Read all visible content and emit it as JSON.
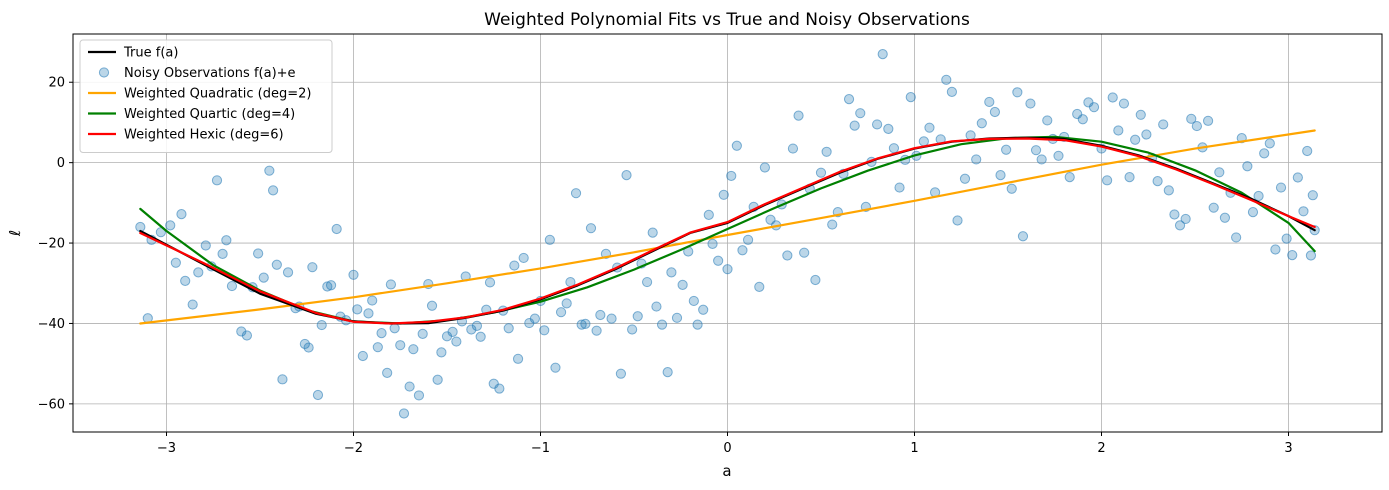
{
  "chart_data": {
    "type": "line",
    "title": "Weighted Polynomial Fits vs True and Noisy Observations",
    "xlabel": "a",
    "ylabel": "ℓ",
    "xlim": [
      -3.5,
      3.5
    ],
    "ylim": [
      -67,
      32
    ],
    "xticks": [
      -3,
      -2,
      -1,
      0,
      1,
      2,
      3
    ],
    "xtick_labels": [
      "−3",
      "−2",
      "−1",
      "0",
      "1",
      "2",
      "3"
    ],
    "yticks": [
      -60,
      -40,
      -20,
      0,
      20
    ],
    "ytick_labels": [
      "−60",
      "−40",
      "−20",
      "0",
      "20"
    ],
    "grid": true,
    "legend_placement": "upper left",
    "series": [
      {
        "name": "True f(a)",
        "kind": "line",
        "color": "#000000",
        "x": [
          -3.14,
          -2.8,
          -2.5,
          -2.2,
          -2.0,
          -1.8,
          -1.6,
          -1.4,
          -1.2,
          -1.0,
          -0.8,
          -0.6,
          -0.4,
          -0.2,
          0.0,
          0.2,
          0.4,
          0.6,
          0.8,
          1.0,
          1.2,
          1.4,
          1.6,
          1.8,
          2.0,
          2.2,
          2.4,
          2.6,
          2.8,
          3.0,
          3.14
        ],
        "y": [
          -17.0,
          -25.3,
          -32.6,
          -37.6,
          -39.5,
          -40.0,
          -39.9,
          -38.6,
          -36.8,
          -34.0,
          -30.5,
          -26.5,
          -22.0,
          -17.5,
          -15.0,
          -10.5,
          -6.5,
          -2.5,
          0.9,
          3.5,
          5.2,
          6.0,
          6.2,
          5.9,
          4.2,
          1.8,
          -1.5,
          -5.2,
          -9.0,
          -13.3,
          -16.8
        ]
      },
      {
        "name": "Noisy Observations f(a)+e",
        "kind": "scatter",
        "color": "#1f77b4"
      },
      {
        "name": "Weighted Quadratic (deg=2)",
        "kind": "line",
        "color": "#ffa500",
        "x": [
          -3.14,
          -2.5,
          -2.0,
          -1.5,
          -1.0,
          -0.5,
          0.0,
          0.5,
          1.0,
          1.5,
          2.0,
          2.5,
          3.14
        ],
        "y": [
          -40.0,
          -36.5,
          -33.5,
          -30.0,
          -26.3,
          -22.3,
          -18.0,
          -13.8,
          -9.5,
          -5.0,
          -0.5,
          3.5,
          8.0
        ]
      },
      {
        "name": "Weighted Quartic (deg=4)",
        "kind": "line",
        "color": "#008000",
        "x": [
          -3.14,
          -3.0,
          -2.75,
          -2.5,
          -2.25,
          -2.0,
          -1.75,
          -1.5,
          -1.25,
          -1.0,
          -0.75,
          -0.5,
          -0.25,
          0.0,
          0.25,
          0.5,
          0.75,
          1.0,
          1.25,
          1.5,
          1.75,
          2.0,
          2.25,
          2.5,
          2.75,
          3.0,
          3.14
        ],
        "y": [
          -11.5,
          -17.0,
          -25.5,
          -31.8,
          -36.7,
          -39.5,
          -40.0,
          -39.2,
          -37.3,
          -34.6,
          -31.0,
          -26.6,
          -21.7,
          -16.5,
          -11.3,
          -6.4,
          -2.0,
          1.8,
          4.6,
          6.1,
          6.4,
          5.2,
          2.5,
          -1.9,
          -7.5,
          -15.0,
          -22.0
        ]
      },
      {
        "name": "Weighted Hexic (deg=6)",
        "kind": "line",
        "color": "#ff0000",
        "x": [
          -3.14,
          -2.8,
          -2.5,
          -2.2,
          -2.0,
          -1.8,
          -1.6,
          -1.4,
          -1.2,
          -1.0,
          -0.8,
          -0.6,
          -0.4,
          -0.2,
          0.0,
          0.2,
          0.4,
          0.6,
          0.8,
          1.0,
          1.2,
          1.4,
          1.6,
          1.8,
          2.0,
          2.2,
          2.4,
          2.6,
          2.8,
          3.0,
          3.14
        ],
        "y": [
          -17.5,
          -25.0,
          -32.0,
          -37.4,
          -39.6,
          -40.0,
          -39.6,
          -38.5,
          -36.6,
          -33.8,
          -30.3,
          -26.3,
          -21.8,
          -17.4,
          -14.8,
          -10.3,
          -6.3,
          -2.3,
          1.0,
          3.6,
          5.3,
          5.9,
          6.0,
          5.6,
          4.0,
          1.6,
          -1.7,
          -5.4,
          -9.3,
          -13.3,
          -16.0
        ]
      }
    ],
    "scatter_points": [
      [
        -3.14,
        -16.0
      ],
      [
        -3.1,
        -38.7
      ],
      [
        -3.08,
        -19.2
      ],
      [
        -3.03,
        -17.3
      ],
      [
        -2.98,
        -15.6
      ],
      [
        -2.95,
        -24.9
      ],
      [
        -2.92,
        -12.8
      ],
      [
        -2.9,
        -29.4
      ],
      [
        -2.86,
        -35.3
      ],
      [
        -2.83,
        -27.3
      ],
      [
        -2.79,
        -20.6
      ],
      [
        -2.76,
        -25.8
      ],
      [
        -2.73,
        -4.4
      ],
      [
        -2.7,
        -22.7
      ],
      [
        -2.68,
        -19.3
      ],
      [
        -2.65,
        -30.7
      ],
      [
        -2.6,
        -42.0
      ],
      [
        -2.57,
        -43.0
      ],
      [
        -2.54,
        -31.0
      ],
      [
        -2.51,
        -22.6
      ],
      [
        -2.48,
        -28.6
      ],
      [
        -2.45,
        -2.0
      ],
      [
        -2.43,
        -6.9
      ],
      [
        -2.41,
        -25.4
      ],
      [
        -2.38,
        -53.9
      ],
      [
        -2.35,
        -27.3
      ],
      [
        -2.31,
        -36.2
      ],
      [
        -2.29,
        -35.8
      ],
      [
        -2.26,
        -45.1
      ],
      [
        -2.24,
        -46.0
      ],
      [
        -2.22,
        -26.0
      ],
      [
        -2.19,
        -57.8
      ],
      [
        -2.17,
        -40.4
      ],
      [
        -2.14,
        -30.8
      ],
      [
        -2.12,
        -30.5
      ],
      [
        -2.09,
        -16.5
      ],
      [
        -2.07,
        -38.3
      ],
      [
        -2.04,
        -39.2
      ],
      [
        -2.0,
        -27.9
      ],
      [
        -1.98,
        -36.5
      ],
      [
        -1.95,
        -48.1
      ],
      [
        -1.92,
        -37.5
      ],
      [
        -1.9,
        -34.3
      ],
      [
        -1.87,
        -45.9
      ],
      [
        -1.85,
        -42.4
      ],
      [
        -1.82,
        -52.3
      ],
      [
        -1.8,
        -30.3
      ],
      [
        -1.78,
        -41.2
      ],
      [
        -1.75,
        -45.4
      ],
      [
        -1.73,
        -62.4
      ],
      [
        -1.7,
        -55.7
      ],
      [
        -1.68,
        -46.4
      ],
      [
        -1.65,
        -57.9
      ],
      [
        -1.63,
        -42.6
      ],
      [
        -1.6,
        -30.2
      ],
      [
        -1.58,
        -35.6
      ],
      [
        -1.55,
        -54.0
      ],
      [
        -1.53,
        -47.2
      ],
      [
        -1.5,
        -43.2
      ],
      [
        -1.47,
        -42.1
      ],
      [
        -1.45,
        -44.5
      ],
      [
        -1.42,
        -39.5
      ],
      [
        -1.4,
        -28.3
      ],
      [
        -1.37,
        -41.5
      ],
      [
        -1.34,
        -40.6
      ],
      [
        -1.32,
        -43.3
      ],
      [
        -1.29,
        -36.6
      ],
      [
        -1.27,
        -29.8
      ],
      [
        -1.25,
        -55.0
      ],
      [
        -1.22,
        -56.2
      ],
      [
        -1.2,
        -36.8
      ],
      [
        -1.17,
        -41.2
      ],
      [
        -1.14,
        -25.6
      ],
      [
        -1.12,
        -48.8
      ],
      [
        -1.09,
        -23.7
      ],
      [
        -1.06,
        -39.9
      ],
      [
        -1.03,
        -38.8
      ],
      [
        -1.0,
        -34.4
      ],
      [
        -0.98,
        -41.7
      ],
      [
        -0.95,
        -19.2
      ],
      [
        -0.92,
        -51.0
      ],
      [
        -0.89,
        -37.2
      ],
      [
        -0.86,
        -35.0
      ],
      [
        -0.84,
        -29.7
      ],
      [
        -0.81,
        -7.6
      ],
      [
        -0.78,
        -40.3
      ],
      [
        -0.76,
        -40.1
      ],
      [
        -0.73,
        -16.3
      ],
      [
        -0.7,
        -41.8
      ],
      [
        -0.68,
        -37.9
      ],
      [
        -0.65,
        -22.7
      ],
      [
        -0.62,
        -38.8
      ],
      [
        -0.59,
        -26.1
      ],
      [
        -0.57,
        -52.5
      ],
      [
        -0.54,
        -3.1
      ],
      [
        -0.51,
        -41.5
      ],
      [
        -0.48,
        -38.2
      ],
      [
        -0.46,
        -25.1
      ],
      [
        -0.43,
        -29.7
      ],
      [
        -0.4,
        -17.4
      ],
      [
        -0.38,
        -35.8
      ],
      [
        -0.35,
        -40.3
      ],
      [
        -0.32,
        -52.1
      ],
      [
        -0.3,
        -27.3
      ],
      [
        -0.27,
        -38.6
      ],
      [
        -0.24,
        -30.4
      ],
      [
        -0.21,
        -22.1
      ],
      [
        -0.18,
        -34.4
      ],
      [
        -0.16,
        -40.3
      ],
      [
        -0.13,
        -36.6
      ],
      [
        -0.1,
        -13.0
      ],
      [
        -0.08,
        -20.2
      ],
      [
        -0.05,
        -24.4
      ],
      [
        -0.02,
        -8.0
      ],
      [
        0.0,
        -26.5
      ],
      [
        0.02,
        -3.3
      ],
      [
        0.05,
        4.2
      ],
      [
        0.08,
        -21.8
      ],
      [
        0.11,
        -19.2
      ],
      [
        0.14,
        -11.0
      ],
      [
        0.17,
        -30.9
      ],
      [
        0.2,
        -1.2
      ],
      [
        0.23,
        -14.2
      ],
      [
        0.26,
        -15.6
      ],
      [
        0.29,
        -10.4
      ],
      [
        0.32,
        -23.1
      ],
      [
        0.35,
        3.5
      ],
      [
        0.38,
        11.7
      ],
      [
        0.41,
        -22.4
      ],
      [
        0.44,
        -6.5
      ],
      [
        0.47,
        -29.2
      ],
      [
        0.5,
        -2.5
      ],
      [
        0.53,
        2.7
      ],
      [
        0.56,
        -15.4
      ],
      [
        0.59,
        -12.3
      ],
      [
        0.62,
        -2.8
      ],
      [
        0.65,
        15.8
      ],
      [
        0.68,
        9.2
      ],
      [
        0.71,
        12.3
      ],
      [
        0.74,
        -11.0
      ],
      [
        0.77,
        0.2
      ],
      [
        0.8,
        9.5
      ],
      [
        0.83,
        27.0
      ],
      [
        0.86,
        8.4
      ],
      [
        0.89,
        3.6
      ],
      [
        0.92,
        -6.2
      ],
      [
        0.95,
        0.7
      ],
      [
        0.98,
        16.3
      ],
      [
        1.01,
        1.7
      ],
      [
        1.05,
        5.3
      ],
      [
        1.08,
        8.7
      ],
      [
        1.11,
        -7.4
      ],
      [
        1.14,
        5.8
      ],
      [
        1.17,
        20.6
      ],
      [
        1.2,
        17.6
      ],
      [
        1.23,
        -14.4
      ],
      [
        1.27,
        -4.0
      ],
      [
        1.3,
        6.8
      ],
      [
        1.33,
        0.8
      ],
      [
        1.36,
        9.8
      ],
      [
        1.4,
        15.1
      ],
      [
        1.43,
        12.6
      ],
      [
        1.46,
        -3.1
      ],
      [
        1.49,
        3.2
      ],
      [
        1.52,
        -6.5
      ],
      [
        1.55,
        17.5
      ],
      [
        1.58,
        -18.3
      ],
      [
        1.62,
        14.7
      ],
      [
        1.65,
        3.1
      ],
      [
        1.68,
        0.8
      ],
      [
        1.71,
        10.5
      ],
      [
        1.74,
        5.9
      ],
      [
        1.77,
        1.7
      ],
      [
        1.8,
        6.4
      ],
      [
        1.83,
        -3.6
      ],
      [
        1.87,
        12.1
      ],
      [
        1.9,
        10.8
      ],
      [
        1.93,
        15.0
      ],
      [
        1.96,
        13.8
      ],
      [
        2.0,
        3.5
      ],
      [
        2.03,
        -4.4
      ],
      [
        2.06,
        16.2
      ],
      [
        2.09,
        8.0
      ],
      [
        2.12,
        14.7
      ],
      [
        2.15,
        -3.6
      ],
      [
        2.18,
        5.7
      ],
      [
        2.21,
        11.9
      ],
      [
        2.24,
        7.0
      ],
      [
        2.27,
        1.2
      ],
      [
        2.3,
        -4.6
      ],
      [
        2.33,
        9.5
      ],
      [
        2.36,
        -6.9
      ],
      [
        2.39,
        -12.9
      ],
      [
        2.42,
        -15.6
      ],
      [
        2.45,
        -14.0
      ],
      [
        2.48,
        10.9
      ],
      [
        2.51,
        9.1
      ],
      [
        2.54,
        3.8
      ],
      [
        2.57,
        10.4
      ],
      [
        2.6,
        -11.2
      ],
      [
        2.63,
        -2.4
      ],
      [
        2.66,
        -13.7
      ],
      [
        2.69,
        -7.5
      ],
      [
        2.72,
        -18.6
      ],
      [
        2.75,
        6.1
      ],
      [
        2.78,
        -0.9
      ],
      [
        2.81,
        -12.3
      ],
      [
        2.84,
        -8.3
      ],
      [
        2.87,
        2.3
      ],
      [
        2.9,
        4.8
      ],
      [
        2.93,
        -21.6
      ],
      [
        2.96,
        -6.2
      ],
      [
        2.99,
        -18.9
      ],
      [
        3.02,
        -23.0
      ],
      [
        3.05,
        -3.7
      ],
      [
        3.08,
        -12.1
      ],
      [
        3.1,
        2.9
      ],
      [
        3.12,
        -23.1
      ],
      [
        3.13,
        -8.1
      ],
      [
        3.14,
        -16.8
      ]
    ]
  }
}
